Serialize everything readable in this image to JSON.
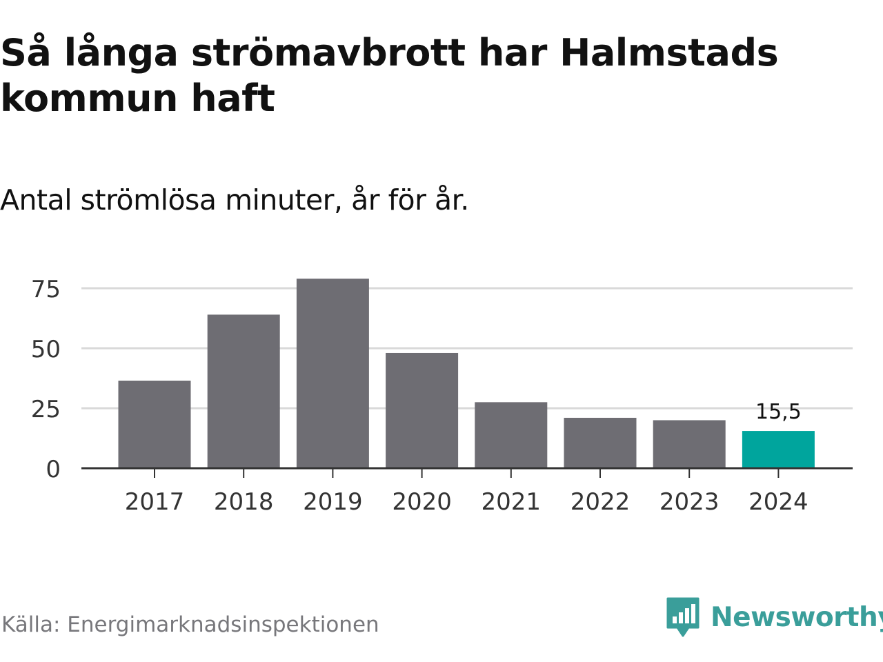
{
  "title": "Så långa strömavbrott har Halmstads kommun haft",
  "subtitle": "Antal strömlösa minuter, år för år.",
  "source": "Källa: Energimarknadsinspektionen",
  "brand": {
    "name": "Newsworthy",
    "icon": "newsworthy-logo-icon",
    "color": "#3a9e9a"
  },
  "colors": {
    "bar": "#6e6d73",
    "highlight": "#00a59d",
    "grid": "#d9d9d9",
    "axis": "#333333",
    "tick_text": "#333333"
  },
  "chart_data": {
    "type": "bar",
    "title": "Så långa strömavbrott har Halmstads kommun haft",
    "subtitle": "Antal strömlösa minuter, år för år.",
    "xlabel": "",
    "ylabel": "",
    "categories": [
      "2017",
      "2018",
      "2019",
      "2020",
      "2021",
      "2022",
      "2023",
      "2024"
    ],
    "values": [
      36.5,
      64,
      79,
      48,
      27.5,
      21,
      20,
      15.5
    ],
    "highlight_index": 7,
    "data_labels": [
      {
        "index": 7,
        "text": "15,5"
      }
    ],
    "y_ticks": [
      0,
      25,
      50,
      75
    ],
    "ylim": [
      0,
      75
    ],
    "grid": true,
    "legend": "none"
  }
}
